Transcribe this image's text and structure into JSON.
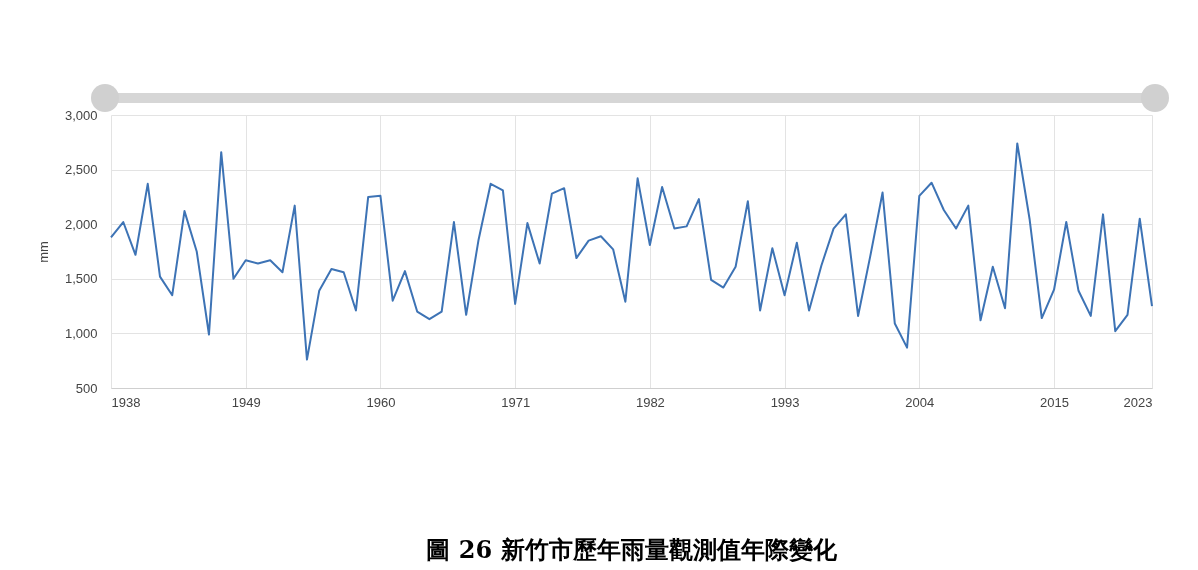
{
  "chart_data": {
    "type": "line",
    "title": "圖 26 新竹市歷年雨量觀測值年際變化",
    "ylabel": "mm",
    "x": [
      1938,
      1939,
      1940,
      1941,
      1942,
      1943,
      1944,
      1945,
      1946,
      1947,
      1948,
      1949,
      1950,
      1951,
      1952,
      1953,
      1954,
      1955,
      1956,
      1957,
      1958,
      1959,
      1960,
      1961,
      1962,
      1963,
      1964,
      1965,
      1966,
      1967,
      1968,
      1969,
      1970,
      1971,
      1972,
      1973,
      1974,
      1975,
      1976,
      1977,
      1978,
      1979,
      1980,
      1981,
      1982,
      1983,
      1984,
      1985,
      1986,
      1987,
      1988,
      1989,
      1990,
      1991,
      1992,
      1993,
      1994,
      1995,
      1996,
      1997,
      1998,
      1999,
      2000,
      2001,
      2002,
      2003,
      2004,
      2005,
      2006,
      2007,
      2008,
      2009,
      2010,
      2011,
      2012,
      2013,
      2014,
      2015,
      2016,
      2017,
      2018,
      2019,
      2020,
      2021,
      2022,
      2023
    ],
    "series": [
      {
        "color": "#3d73b5",
        "values": [
          1880,
          2020,
          1720,
          2370,
          1520,
          1350,
          2120,
          1750,
          990,
          2660,
          1500,
          1670,
          1640,
          1670,
          1560,
          2170,
          760,
          1390,
          1590,
          1560,
          1210,
          2250,
          2260,
          1300,
          1570,
          1200,
          1130,
          1200,
          2020,
          1170,
          1850,
          2370,
          2310,
          1270,
          2010,
          1640,
          2280,
          2330,
          1690,
          1850,
          1890,
          1770,
          1290,
          2420,
          1810,
          2340,
          1960,
          1980,
          2230,
          1490,
          1420,
          1610,
          2210,
          1210,
          1780,
          1350,
          1830,
          1210,
          1620,
          1960,
          2090,
          1160,
          1710,
          2290,
          1090,
          870,
          2260,
          2380,
          2130,
          1960,
          2170,
          1120,
          1610,
          1230,
          2740,
          2050,
          1140,
          1400,
          2020,
          1390,
          1160,
          2090,
          1020,
          1170,
          2050,
          1250
        ]
      }
    ],
    "xlim": [
      1938,
      2023
    ],
    "xticks": [
      1938,
      1949,
      1960,
      1971,
      1982,
      1993,
      2004,
      2015,
      2023
    ],
    "ylim": [
      500,
      3000
    ],
    "yticks": [
      500,
      {
        "value": 1000,
        "label": "1,000"
      },
      {
        "value": 1500,
        "label": "1,500"
      },
      {
        "value": 2000,
        "label": "2,000"
      },
      {
        "value": 2500,
        "label": "2,500"
      },
      {
        "value": 3000,
        "label": "3,000"
      }
    ],
    "grid": true,
    "legend": false,
    "marker": "none",
    "line_style": "solid"
  }
}
